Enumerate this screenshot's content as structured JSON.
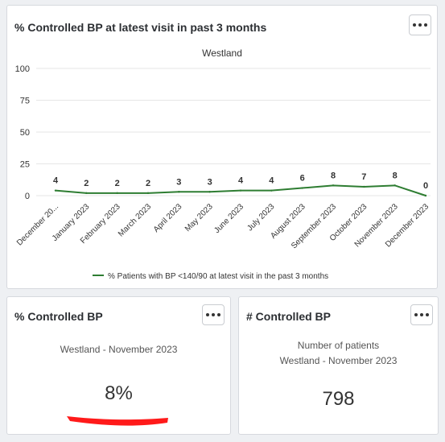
{
  "top_card": {
    "title": "% Controlled BP at latest visit in past 3 months",
    "menu_icon": "more-horizontal-icon"
  },
  "chart_data": {
    "type": "line",
    "title": "Westland",
    "categories": [
      "December 20...",
      "January 2023",
      "February 2023",
      "March 2023",
      "April 2023",
      "May 2023",
      "June 2023",
      "July 2023",
      "August 2023",
      "September 2023",
      "October 2023",
      "November 2023",
      "December 2023"
    ],
    "series": [
      {
        "name": "% Patients with BP <140/90 at latest visit in the past 3 months",
        "values": [
          4,
          2,
          2,
          2,
          3,
          3,
          4,
          4,
          6,
          8,
          7,
          8,
          0
        ],
        "color": "#2e7d32"
      }
    ],
    "y_ticks": [
      0,
      25,
      50,
      75,
      100
    ],
    "ylim": [
      0,
      100
    ],
    "grid": true,
    "legend_position": "bottom"
  },
  "left_card": {
    "title": "% Controlled BP",
    "subtitle": "Westland - November 2023",
    "value": "8%",
    "redaction_color": "#ff1a1a"
  },
  "right_card": {
    "title": "# Controlled BP",
    "subtitle_line1": "Number of patients",
    "subtitle_line2": "Westland - November 2023",
    "value": "798"
  }
}
